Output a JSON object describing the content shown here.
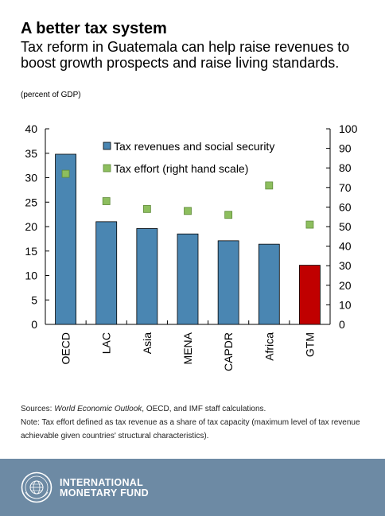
{
  "header": {
    "title": "A better tax system",
    "subtitle": "Tax reform in Guatemala can help raise revenues to boost growth prospects and raise living standards.",
    "unit": "(percent of GDP)"
  },
  "chart_data": {
    "type": "bar",
    "categories": [
      "OECD",
      "LAC",
      "Asia",
      "MENA",
      "CAPDR",
      "Africa",
      "GTM"
    ],
    "series": [
      {
        "name": "Tax revenues and social security",
        "type": "bar",
        "axis": "left",
        "values": [
          34.8,
          21.0,
          19.6,
          18.5,
          17.1,
          16.4,
          12.1
        ]
      },
      {
        "name": "Tax effort (right hand scale)",
        "type": "scatter",
        "axis": "right",
        "values": [
          77,
          63,
          59,
          58,
          56,
          71,
          51
        ]
      }
    ],
    "ylim": [
      0,
      40
    ],
    "y2lim": [
      0,
      100
    ],
    "yticks": [
      0,
      5,
      10,
      15,
      20,
      25,
      30,
      35,
      40
    ],
    "y2ticks": [
      0,
      10,
      20,
      30,
      40,
      50,
      60,
      70,
      80,
      90,
      100
    ],
    "highlight_category": "GTM",
    "legend_position": "top-right",
    "colors": {
      "bar": "#4a86b2",
      "bar_highlight": "#c00000",
      "marker": "#8dbe5e",
      "marker_edge": "#5f8a3a"
    }
  },
  "sources": {
    "prefix": "Sources: ",
    "italic": "World Economic Outlook",
    "rest": ", OECD, and IMF staff calculations.",
    "note": "Note: Tax effort defined as tax revenue as a share of tax capacity (maximum level of tax revenue achievable given countries' structural characteristics)."
  },
  "footer": {
    "org_line1": "INTERNATIONAL",
    "org_line2": "MONETARY FUND",
    "seal_icon": "imf-seal-icon"
  }
}
